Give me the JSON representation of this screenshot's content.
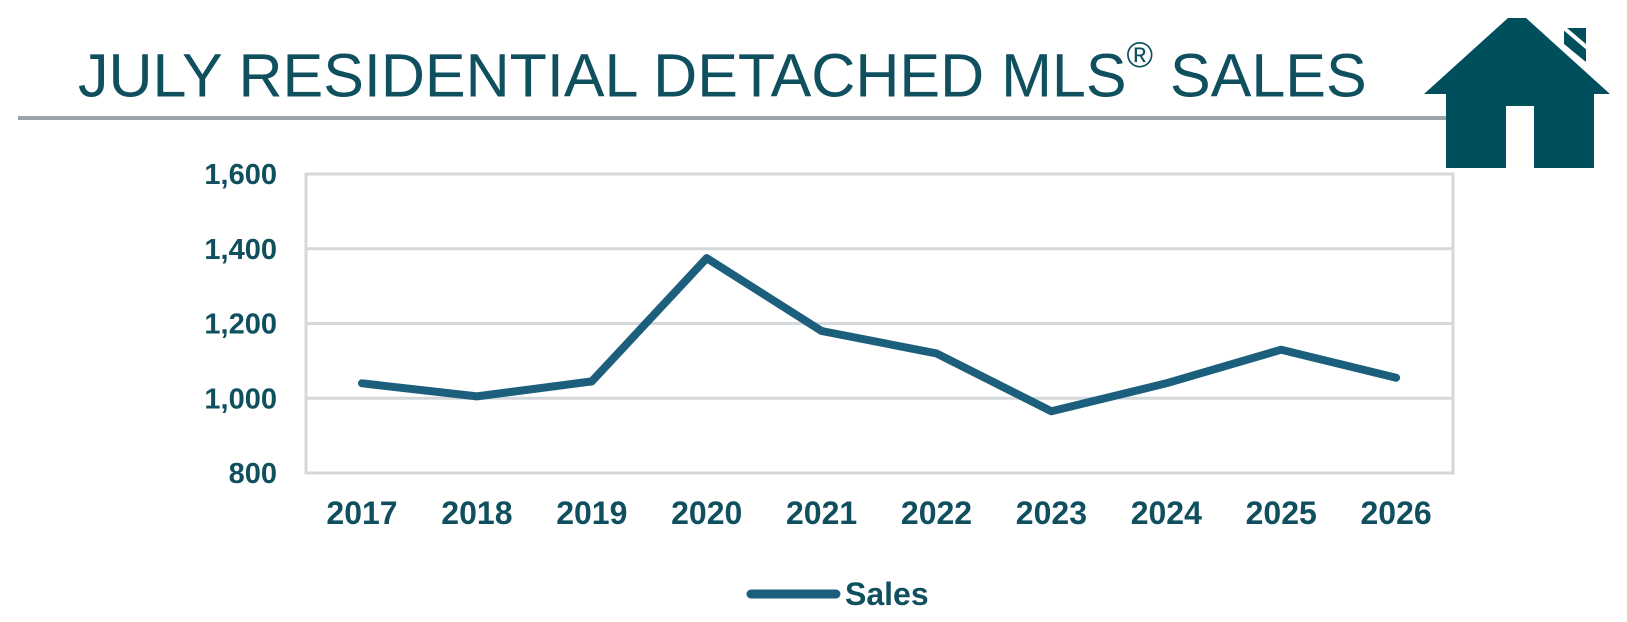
{
  "header": {
    "title_main": "JULY RESIDENTIAL DETACHED MLS",
    "title_reg": "®",
    "title_end": " SALES"
  },
  "colors": {
    "title": "#0f4f5e",
    "line": "#1c5f7d",
    "grid": "#d4d8da",
    "rule": "#9aa5a8",
    "house": "#004f5d"
  },
  "icons": {
    "logo": "house-icon"
  },
  "chart_data": {
    "type": "line",
    "title": "",
    "xlabel": "",
    "ylabel": "",
    "x": [
      "2017",
      "2018",
      "2019",
      "2020",
      "2021",
      "2022",
      "2023",
      "2024",
      "2025",
      "2026"
    ],
    "ylim": [
      800,
      1600
    ],
    "yticks": [
      800,
      1000,
      1200,
      1400,
      1600
    ],
    "ytick_labels": [
      "800",
      "1,000",
      "1,200",
      "1,400",
      "1,600"
    ],
    "grid": true,
    "legend": "bottom",
    "series": [
      {
        "name": "Sales",
        "values": [
          1040,
          1005,
          1045,
          1375,
          1180,
          1120,
          965,
          1040,
          1130,
          1055
        ]
      }
    ]
  }
}
